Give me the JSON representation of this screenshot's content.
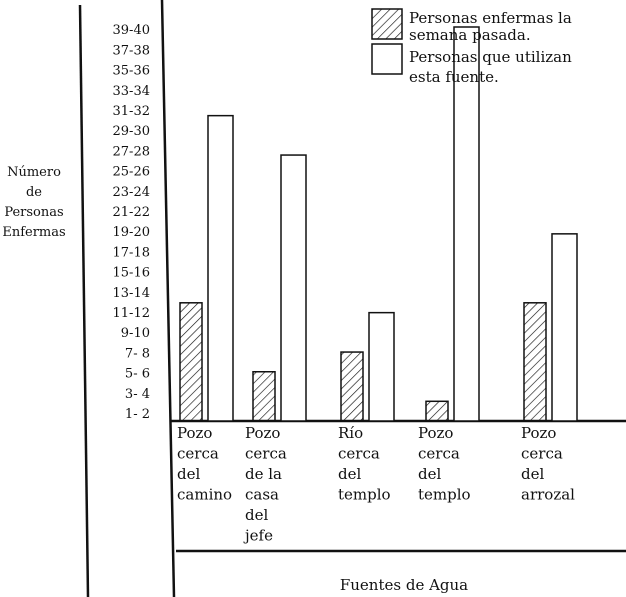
{
  "chart_data": {
    "type": "bar",
    "title": "",
    "ylabel_lines": [
      "Número",
      "de",
      "Personas",
      "Enfermas"
    ],
    "xlabel": "Fuentes de Agua",
    "y_tick_labels": [
      "1- 2",
      "3- 4",
      "5- 6",
      "7- 8",
      "9-10",
      "11-12",
      "13-14",
      "15-16",
      "17-18",
      "19-20",
      "21-22",
      "23-24",
      "25-26",
      "27-28",
      "29-30",
      "31-32",
      "33-34",
      "35-36",
      "37-38",
      "39-40"
    ],
    "ylim": [
      0,
      40
    ],
    "categories": [
      [
        "Pozo",
        "cerca",
        "del",
        "camino"
      ],
      [
        "Pozo",
        "cerca",
        "de la",
        "casa",
        "del",
        "jefe"
      ],
      [
        "Río",
        "cerca",
        "del",
        "templo"
      ],
      [
        "Pozo",
        "cerca",
        "del",
        "templo"
      ],
      [
        "Pozo",
        "cerca",
        "del",
        "arrozal"
      ]
    ],
    "series": [
      {
        "name": "Personas enfermas la semana pasada.",
        "legend_lines": [
          "Personas enfermas la",
          "semana pasada."
        ],
        "pattern": "hatched",
        "values": [
          12,
          5,
          7,
          2,
          12
        ]
      },
      {
        "name": "Personas que utilizan esta fuente.",
        "legend_lines": [
          "Personas que utilizan",
          "esta fuente."
        ],
        "pattern": "empty",
        "values": [
          31,
          27,
          11,
          40,
          19
        ]
      }
    ],
    "grid": false,
    "legend_position": "top-right"
  }
}
